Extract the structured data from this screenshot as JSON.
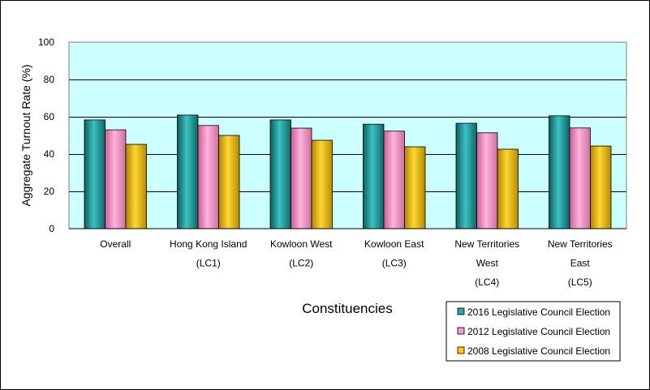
{
  "chart_data": {
    "type": "bar",
    "title": "",
    "xlabel": "Constituencies",
    "ylabel": "Aggregate Turnout Rate (%)",
    "ylim": [
      0,
      100
    ],
    "yticks": [
      0,
      20,
      40,
      60,
      80,
      100
    ],
    "grid": true,
    "legend_position": "bottom-right",
    "plot_background": "#CCFFFF",
    "categories": [
      [
        "Overall"
      ],
      [
        "Hong Kong Island",
        "(LC1)"
      ],
      [
        "Kowloon West",
        "(LC2)"
      ],
      [
        "Kowloon East",
        "(LC3)"
      ],
      [
        "New Territories",
        "West",
        "(LC4)"
      ],
      [
        "New Territories",
        "East",
        "(LC5)"
      ]
    ],
    "series": [
      {
        "name": "2016 Legislative Council Election",
        "color": "#2AA8A8",
        "values": [
          58.3,
          60.9,
          58.3,
          56.0,
          56.5,
          60.5
        ]
      },
      {
        "name": "2012 Legislative Council Election",
        "color": "#FF99CC",
        "values": [
          53.0,
          55.3,
          53.9,
          52.3,
          51.4,
          54.0
        ]
      },
      {
        "name": "2008 Legislative Council Election",
        "color": "#FFCC00",
        "values": [
          45.2,
          50.0,
          47.4,
          43.9,
          42.6,
          44.3
        ]
      }
    ]
  }
}
